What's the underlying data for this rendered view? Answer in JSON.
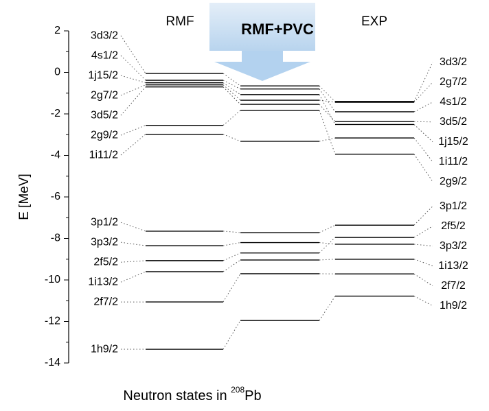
{
  "chart_data": {
    "type": "level",
    "ylabel": "E [MeV]",
    "xlabel": [
      "Neutron states in ",
      "208",
      "Pb"
    ],
    "ylim": [
      -14,
      2
    ],
    "yticks": [
      2,
      0,
      -2,
      -4,
      -6,
      -8,
      -10,
      -12,
      -14
    ],
    "yminor_ticks": [
      1,
      -1,
      -3,
      -5,
      -7,
      -9,
      -11,
      -13
    ],
    "color": "#000000",
    "series": [
      {
        "name": "RMF",
        "labels": [
          "3d3/2",
          "4s1/2",
          "1j15/2",
          "2g7/2",
          "3d5/2",
          "2g9/2",
          "1i11/2",
          "3p1/2",
          "3p3/2",
          "2f5/2",
          "1i13/2",
          "2f7/2",
          "1h9/2"
        ],
        "values": [
          -0.05,
          -0.38,
          -0.5,
          -0.6,
          -0.7,
          -2.55,
          -2.98,
          -7.65,
          -8.35,
          -9.07,
          -9.6,
          -11.06,
          -13.34
        ]
      },
      {
        "name": "RMF+PVC",
        "values": [
          -0.65,
          -0.8,
          -1.07,
          -1.34,
          -1.54,
          -1.83,
          -3.32,
          -7.72,
          -8.2,
          -8.7,
          -9.04,
          -9.7,
          -11.95
        ]
      },
      {
        "name": "EXP",
        "labels": [
          "3d3/2",
          "2g7/2",
          "4s1/2",
          "3d5/2",
          "1j15/2",
          "1i11/2",
          "2g9/2",
          "3p1/2",
          "2f5/2",
          "3p3/2",
          "1i13/2",
          "2f7/2",
          "1h9/2"
        ],
        "values": [
          -1.4,
          -1.44,
          -1.9,
          -2.37,
          -2.51,
          -3.16,
          -3.94,
          -7.36,
          -7.95,
          -8.28,
          -9.0,
          -9.71,
          -10.78
        ]
      }
    ]
  }
}
